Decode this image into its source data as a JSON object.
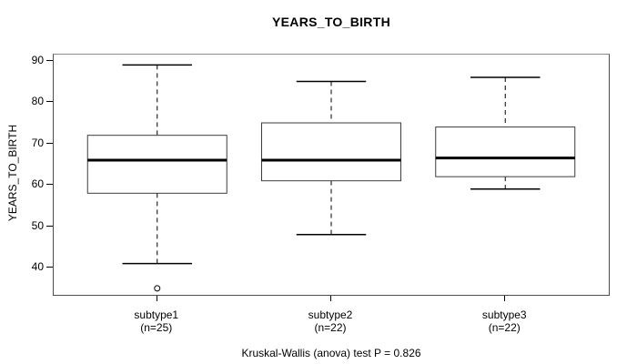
{
  "figure": {
    "title": "YEARS_TO_BIRTH",
    "y_axis_label": "YEARS_TO_BIRTH",
    "caption": "Kruskal-Wallis (anova) test P = 0.826"
  },
  "chart_data": {
    "type": "boxplot",
    "title": "YEARS_TO_BIRTH",
    "xlabel": "",
    "ylabel": "YEARS_TO_BIRTH",
    "caption": "Kruskal-Wallis (anova) test P = 0.826",
    "yticks": [
      40,
      50,
      60,
      70,
      80,
      90
    ],
    "ylim": [
      33,
      91.5
    ],
    "xlim": [
      0.4,
      3.6
    ],
    "box_width": 0.8,
    "grid": false,
    "legend": "none",
    "groups": [
      {
        "name": "subtype1",
        "n_label": "(n=25)",
        "position": 1,
        "whisker_low": 41,
        "q1": 58,
        "median": 66,
        "q3": 72,
        "whisker_high": 89,
        "outliers": [
          35
        ]
      },
      {
        "name": "subtype2",
        "n_label": "(n=22)",
        "position": 2,
        "whisker_low": 48,
        "q1": 61,
        "median": 66,
        "q3": 75,
        "whisker_high": 85,
        "outliers": []
      },
      {
        "name": "subtype3",
        "n_label": "(n=22)",
        "position": 3,
        "whisker_low": 59,
        "q1": 62,
        "median": 66.5,
        "q3": 74,
        "whisker_high": 86,
        "outliers": []
      }
    ],
    "colors": {
      "line": "#000000",
      "box_stroke": "#3c3c3c",
      "box_fill": "#ffffff",
      "frame": "#4f4f4f",
      "background": "#ffffff"
    }
  }
}
